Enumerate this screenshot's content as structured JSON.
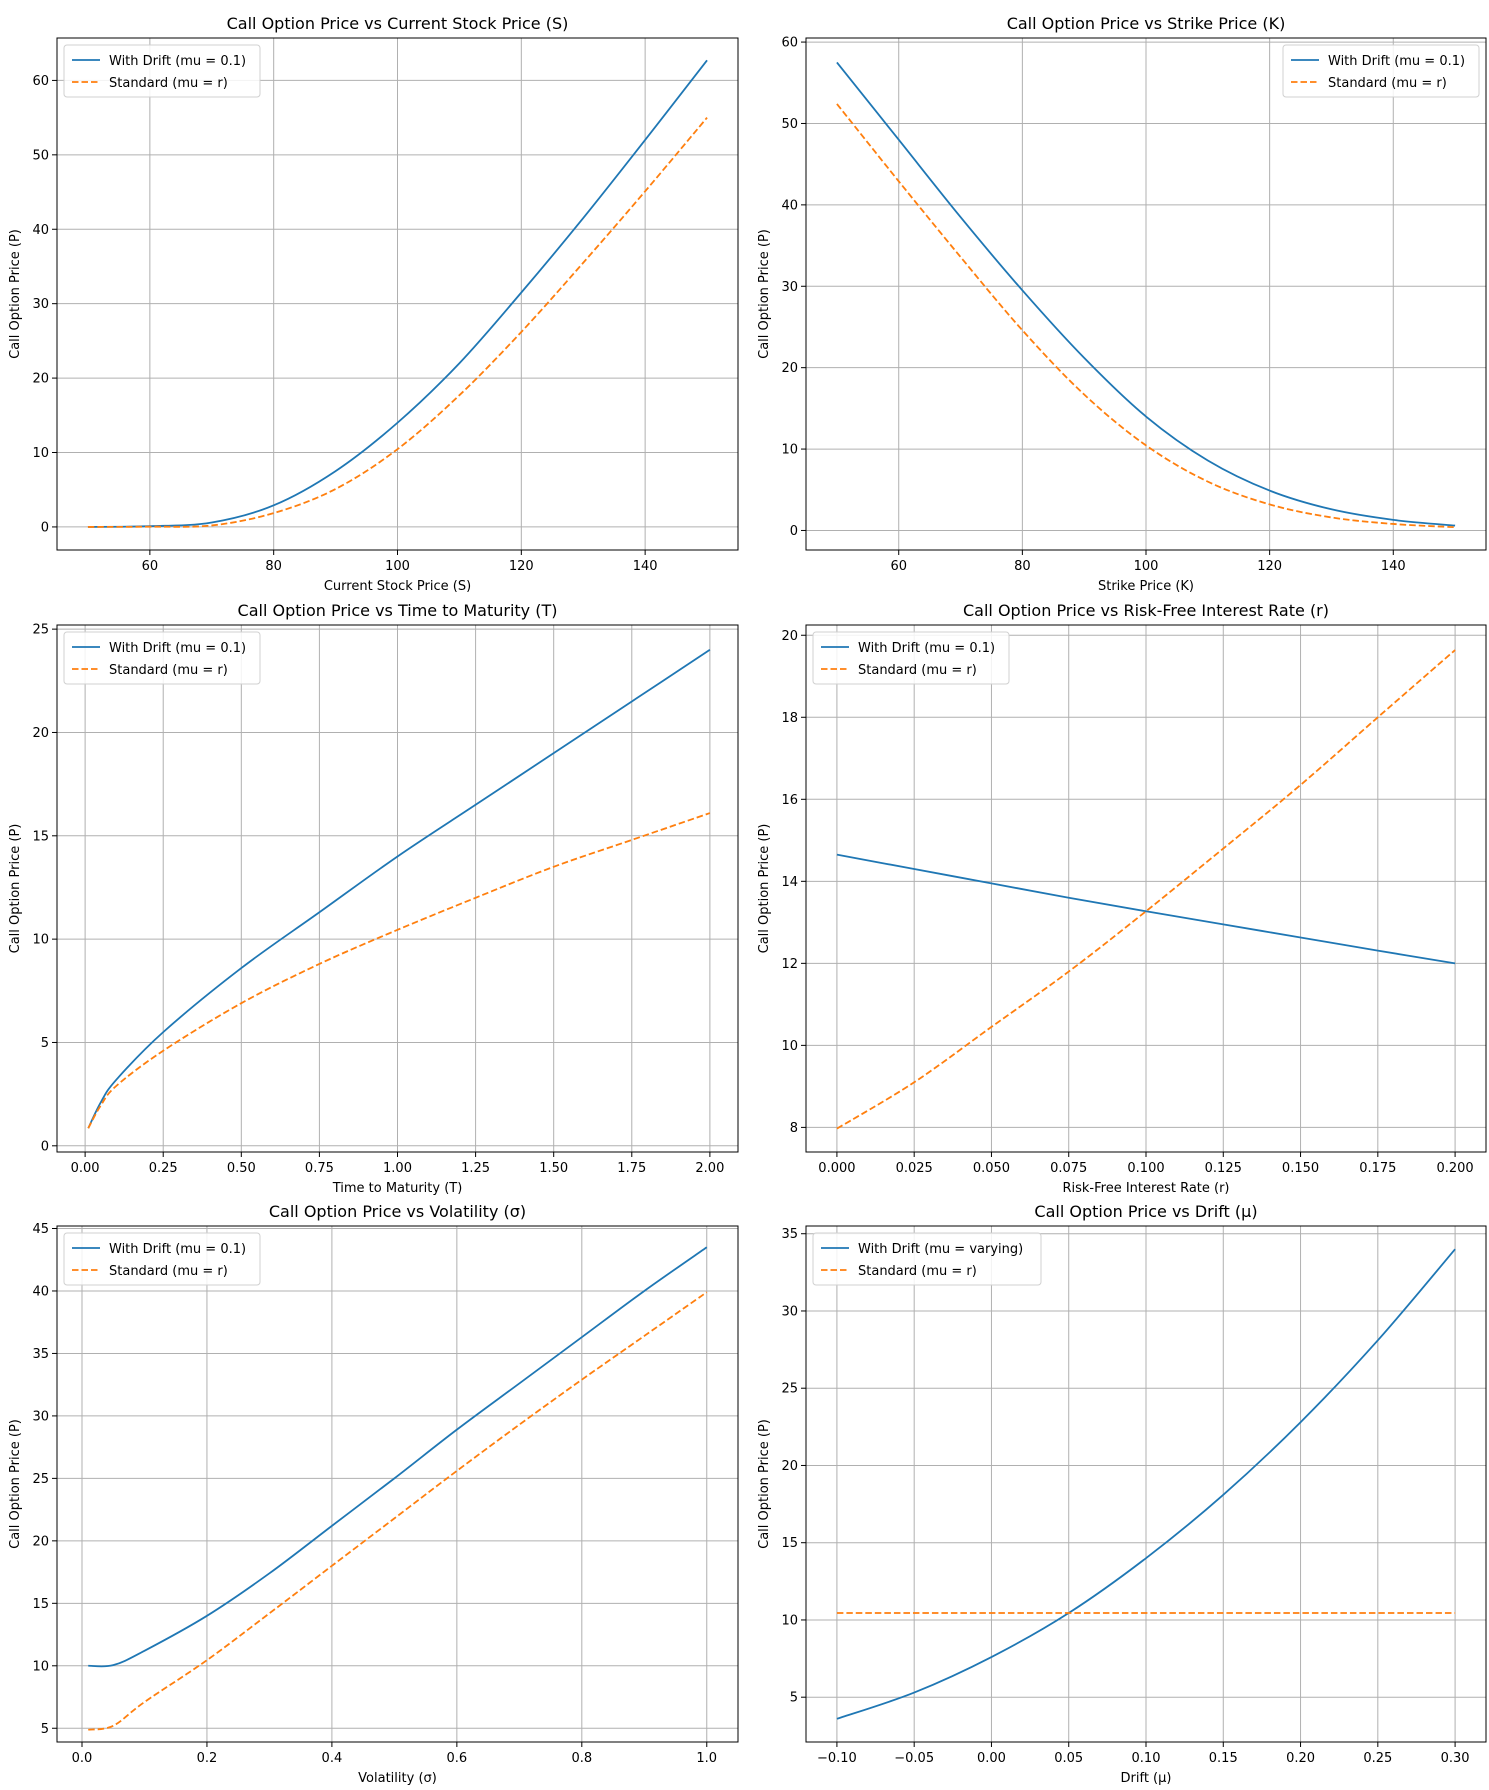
{
  "colors": {
    "drift": "#1f77b4",
    "standard": "#ff7f0e",
    "grid": "#b0b0b0"
  },
  "chart_data": [
    {
      "type": "line",
      "title": "Call Option Price vs Current Stock Price (S)",
      "xlabel": "Current Stock Price (S)",
      "ylabel": "Call Option Price (P)",
      "xlim": [
        45,
        155
      ],
      "ylim": [
        -3.1,
        65.7
      ],
      "xticks": [
        60,
        80,
        100,
        120,
        140
      ],
      "xtick_labels": [
        "60",
        "80",
        "100",
        "120",
        "140"
      ],
      "yticks": [
        0,
        10,
        20,
        30,
        40,
        50,
        60
      ],
      "ytick_labels": [
        "0",
        "10",
        "20",
        "30",
        "40",
        "50",
        "60"
      ],
      "grid": true,
      "legend": "upper-left",
      "x": [
        50,
        60,
        70,
        80,
        90,
        100,
        110,
        120,
        130,
        140,
        150
      ],
      "series": [
        {
          "name": "With Drift (mu = 0.1)",
          "style": "solid",
          "values": [
            0,
            0.1,
            0.6,
            2.9,
            7.5,
            14.0,
            22.0,
            31.5,
            41.5,
            52.0,
            62.7
          ]
        },
        {
          "name": "Standard (mu = r)",
          "style": "dashed",
          "values": [
            0,
            0.03,
            0.2,
            1.86,
            5.1,
            10.45,
            17.7,
            26.2,
            35.5,
            45.1,
            55.0
          ]
        }
      ]
    },
    {
      "type": "line",
      "title": "Call Option Price vs Strike Price (K)",
      "xlabel": "Strike Price (K)",
      "ylabel": "Call Option Price (P)",
      "xlim": [
        45,
        155
      ],
      "ylim": [
        -2.4,
        60.5
      ],
      "xticks": [
        60,
        80,
        100,
        120,
        140
      ],
      "xtick_labels": [
        "60",
        "80",
        "100",
        "120",
        "140"
      ],
      "yticks": [
        0,
        10,
        20,
        30,
        40,
        50,
        60
      ],
      "ytick_labels": [
        "0",
        "10",
        "20",
        "30",
        "40",
        "50",
        "60"
      ],
      "grid": true,
      "legend": "upper-right",
      "x": [
        50,
        60,
        70,
        80,
        90,
        100,
        110,
        120,
        130,
        140,
        150
      ],
      "series": [
        {
          "name": "With Drift (mu = 0.1)",
          "style": "solid",
          "values": [
            57.5,
            48.0,
            38.5,
            29.5,
            21.2,
            14.0,
            8.6,
            4.9,
            2.6,
            1.3,
            0.6
          ]
        },
        {
          "name": "Standard (mu = r)",
          "style": "dashed",
          "values": [
            52.4,
            42.9,
            33.6,
            24.6,
            16.7,
            10.45,
            6.0,
            3.2,
            1.6,
            0.8,
            0.4
          ]
        }
      ]
    },
    {
      "type": "line",
      "title": "Call Option Price vs Time to Maturity (T)",
      "xlabel": "Time to Maturity (T)",
      "ylabel": "Call Option Price (P)",
      "xlim": [
        -0.09,
        2.09
      ],
      "ylim": [
        -0.3,
        25.2
      ],
      "xticks": [
        0,
        0.25,
        0.5,
        0.75,
        1.0,
        1.25,
        1.5,
        1.75,
        2.0
      ],
      "xtick_labels": [
        "0.00",
        "0.25",
        "0.50",
        "0.75",
        "1.00",
        "1.25",
        "1.50",
        "1.75",
        "2.00"
      ],
      "yticks": [
        0,
        5,
        10,
        15,
        20,
        25
      ],
      "ytick_labels": [
        "0",
        "5",
        "10",
        "15",
        "20",
        "25"
      ],
      "grid": true,
      "legend": "upper-left",
      "x": [
        0.01,
        0.05,
        0.1,
        0.25,
        0.5,
        0.75,
        1.0,
        1.25,
        1.5,
        1.75,
        2.0
      ],
      "series": [
        {
          "name": "With Drift (mu = 0.1)",
          "style": "solid",
          "values": [
            0.85,
            2.1,
            3.2,
            5.5,
            8.6,
            11.3,
            14.0,
            16.5,
            19.0,
            21.5,
            24.0
          ]
        },
        {
          "name": "Standard (mu = r)",
          "style": "dashed",
          "values": [
            0.85,
            1.95,
            2.9,
            4.6,
            6.9,
            8.8,
            10.45,
            12.0,
            13.5,
            14.8,
            16.1
          ]
        }
      ]
    },
    {
      "type": "line",
      "title": "Call Option Price vs Risk-Free Interest Rate (r)",
      "xlabel": "Risk-Free Interest Rate (r)",
      "ylabel": "Call Option Price (P)",
      "xlim": [
        -0.01,
        0.21
      ],
      "ylim": [
        7.4,
        20.25
      ],
      "xticks": [
        0,
        0.025,
        0.05,
        0.075,
        0.1,
        0.125,
        0.15,
        0.175,
        0.2
      ],
      "xtick_labels": [
        "0.000",
        "0.025",
        "0.050",
        "0.075",
        "0.100",
        "0.125",
        "0.150",
        "0.175",
        "0.200"
      ],
      "yticks": [
        8,
        10,
        12,
        14,
        16,
        18,
        20
      ],
      "ytick_labels": [
        "8",
        "10",
        "12",
        "14",
        "16",
        "18",
        "20"
      ],
      "grid": true,
      "legend": "upper-left",
      "x": [
        0,
        0.025,
        0.05,
        0.075,
        0.1,
        0.125,
        0.15,
        0.175,
        0.2
      ],
      "series": [
        {
          "name": "With Drift (mu = 0.1)",
          "style": "solid",
          "values": [
            14.65,
            14.3,
            13.95,
            13.6,
            13.27,
            12.95,
            12.63,
            12.31,
            12.0
          ]
        },
        {
          "name": "Standard (mu = r)",
          "style": "dashed",
          "values": [
            7.97,
            9.1,
            10.45,
            11.8,
            13.27,
            14.8,
            16.35,
            18.0,
            19.64
          ]
        }
      ]
    },
    {
      "type": "line",
      "title": "Call Option Price vs Volatility (σ)",
      "xlabel": "Volatility (σ)",
      "ylabel": "Call Option Price (P)",
      "xlim": [
        -0.04,
        1.05
      ],
      "ylim": [
        3.9,
        45.2
      ],
      "xticks": [
        0,
        0.2,
        0.4,
        0.6,
        0.8,
        1.0
      ],
      "xtick_labels": [
        "0.0",
        "0.2",
        "0.4",
        "0.6",
        "0.8",
        "1.0"
      ],
      "yticks": [
        5,
        10,
        15,
        20,
        25,
        30,
        35,
        40,
        45
      ],
      "ytick_labels": [
        "5",
        "10",
        "15",
        "20",
        "25",
        "30",
        "35",
        "40",
        "45"
      ],
      "grid": true,
      "legend": "upper-left",
      "x": [
        0.01,
        0.05,
        0.1,
        0.2,
        0.3,
        0.4,
        0.5,
        0.6,
        0.7,
        0.8,
        0.9,
        1.0
      ],
      "series": [
        {
          "name": "With Drift (mu = 0.1)",
          "style": "solid",
          "values": [
            10.0,
            10.05,
            11.2,
            14.0,
            17.4,
            21.2,
            25.0,
            28.9,
            32.6,
            36.3,
            40.0,
            43.5
          ]
        },
        {
          "name": "Standard (mu = r)",
          "style": "dashed",
          "values": [
            4.88,
            5.2,
            7.1,
            10.45,
            14.2,
            18.0,
            21.8,
            25.6,
            29.3,
            32.9,
            36.4,
            39.9
          ]
        }
      ]
    },
    {
      "type": "line",
      "title": "Call Option Price vs Drift (μ)",
      "xlabel": "Drift (μ)",
      "ylabel": "Call Option Price (P)",
      "xlim": [
        -0.12,
        0.32
      ],
      "ylim": [
        2.1,
        35.5
      ],
      "xticks": [
        -0.1,
        -0.05,
        0,
        0.05,
        0.1,
        0.15,
        0.2,
        0.25,
        0.3
      ],
      "xtick_labels": [
        "−0.10",
        "−0.05",
        "0.00",
        "0.05",
        "0.10",
        "0.15",
        "0.20",
        "0.25",
        "0.30"
      ],
      "yticks": [
        5,
        10,
        15,
        20,
        25,
        30,
        35
      ],
      "ytick_labels": [
        "5",
        "10",
        "15",
        "20",
        "25",
        "30",
        "35"
      ],
      "grid": true,
      "legend": "upper-left",
      "x": [
        -0.1,
        -0.05,
        0,
        0.05,
        0.1,
        0.15,
        0.2,
        0.25,
        0.3
      ],
      "series": [
        {
          "name": "With Drift (mu = varying)",
          "style": "solid",
          "values": [
            3.6,
            5.3,
            7.6,
            10.45,
            14.0,
            18.1,
            22.8,
            28.1,
            34.0
          ]
        },
        {
          "name": "Standard (mu = r)",
          "style": "dashed",
          "values": [
            10.45,
            10.45,
            10.45,
            10.45,
            10.45,
            10.45,
            10.45,
            10.45,
            10.45
          ]
        }
      ]
    }
  ]
}
